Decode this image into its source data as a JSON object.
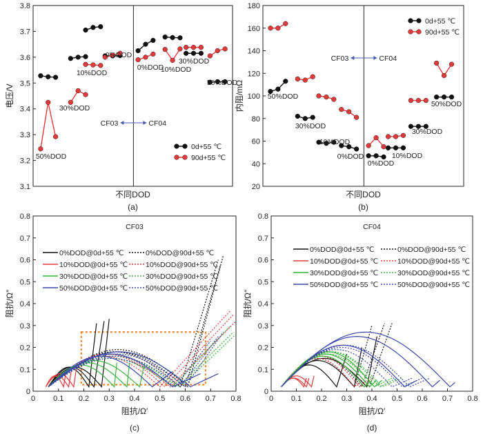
{
  "colors": {
    "black": "#111111",
    "red": "#e23a3a",
    "green": "#39b339",
    "blue": "#3a47a8",
    "orange": "#e8892c",
    "arrow": "#4b5bb0"
  },
  "chart_data": [
    {
      "type": "scatter",
      "id": "a",
      "caption": "(a)",
      "xlabel": "不同DOD",
      "ylabel": "电压/V",
      "ylim": [
        3.1,
        3.8
      ],
      "yticks": [
        "3.1",
        "3.2",
        "3.3",
        "3.4",
        "3.5",
        "3.6",
        "3.7",
        "3.8"
      ],
      "divider_label_left": "CF03",
      "divider_label_right": "CF04",
      "legend": [
        "0d+55 ℃",
        "90d+55 ℃"
      ],
      "groups": [
        {
          "label": "50%DOD",
          "x": [
            0.5,
            1.0,
            1.5
          ],
          "series0": [
            3.528,
            3.524,
            3.522
          ],
          "series1": [
            3.245,
            3.425,
            3.292
          ]
        },
        {
          "label": "30%DOD",
          "x": [
            2.5,
            3.0,
            3.5
          ],
          "series0": [
            3.595,
            3.6,
            3.602
          ],
          "series1": [
            3.425,
            3.47,
            3.455
          ]
        },
        {
          "label": "10%DOD",
          "x": [
            3.5,
            4.0,
            4.5
          ],
          "series0": [
            3.705,
            3.715,
            3.718
          ],
          "series1": [
            3.572,
            3.57,
            3.568
          ]
        },
        {
          "label": "0%DOD",
          "x": [
            4.8,
            5.3,
            5.8
          ],
          "series0": [
            3.605,
            3.605,
            3.606
          ],
          "series1": [
            3.6,
            3.608,
            3.615
          ]
        },
        {
          "label": "0%DOD",
          "x": [
            7.0,
            7.5,
            8.0
          ],
          "series0": [
            3.625,
            3.65,
            3.665
          ],
          "series1": [
            3.59,
            3.6,
            3.612
          ]
        },
        {
          "label": "10%DOD",
          "x": [
            8.8,
            9.3,
            9.8
          ],
          "series0": [
            3.678,
            3.676,
            3.675
          ],
          "series1": [
            3.63,
            3.588,
            3.632
          ]
        },
        {
          "label": "30%DOD",
          "x": [
            10.2,
            10.7,
            11.2
          ],
          "series0": [
            3.615,
            3.615,
            3.615
          ],
          "series1": [
            3.638,
            3.638,
            3.638
          ]
        },
        {
          "label": "50%DOD",
          "x": [
            11.8,
            12.3,
            12.8
          ],
          "series0": [
            3.503,
            3.505,
            3.505
          ],
          "series1": [
            3.605,
            3.625,
            3.632
          ]
        }
      ]
    },
    {
      "type": "scatter",
      "id": "b",
      "caption": "(b)",
      "xlabel": "不同DOD",
      "ylabel": "内阻/mΩ",
      "ylim": [
        20,
        180
      ],
      "yticks": [
        "20",
        "40",
        "60",
        "80",
        "100",
        "120",
        "140",
        "160",
        "180"
      ],
      "divider_label_left": "CF03",
      "divider_label_right": "CF04",
      "legend": [
        "0d+55 ℃",
        "90d+55 ℃"
      ],
      "groups": [
        {
          "label": "50%DOD",
          "x": [
            0.5,
            1.0,
            1.5
          ],
          "series0": [
            104,
            106,
            113
          ],
          "series1": [
            160,
            160,
            164
          ]
        },
        {
          "label": "30%DOD",
          "x": [
            2.3,
            2.8,
            3.3
          ],
          "series0": [
            82,
            80,
            81
          ],
          "series1": [
            115,
            114,
            117
          ]
        },
        {
          "label": "10%DOD",
          "x": [
            3.7,
            4.2,
            4.7
          ],
          "series0": [
            59,
            58,
            59
          ],
          "series1": [
            100,
            99,
            97
          ]
        },
        {
          "label": "0%DOD",
          "x": [
            5.2,
            5.7,
            6.2
          ],
          "series0": [
            56,
            55,
            53
          ],
          "series1": [
            88,
            86,
            81
          ]
        },
        {
          "label": "0%DOD",
          "x": [
            7.0,
            7.5,
            8.0
          ],
          "series0": [
            47,
            47,
            46
          ],
          "series1": [
            56,
            63,
            55
          ]
        },
        {
          "label": "10%DOD",
          "x": [
            8.3,
            8.8,
            9.3
          ],
          "series0": [
            54,
            54,
            54
          ],
          "series1": [
            64,
            64,
            65
          ]
        },
        {
          "label": "30%DOD",
          "x": [
            9.8,
            10.3,
            10.8
          ],
          "series0": [
            73,
            73,
            73
          ],
          "series1": [
            96,
            96,
            96
          ]
        },
        {
          "label": "50%DOD",
          "x": [
            11.5,
            12.0,
            12.5
          ],
          "series0": [
            99,
            99,
            99
          ],
          "series1": [
            129,
            118,
            128
          ]
        }
      ]
    },
    {
      "type": "line",
      "id": "c",
      "caption": "(c)",
      "title": "CF03",
      "xlabel": "阻抗/Ω′",
      "ylabel": "阻抗/Ω″",
      "xlim": [
        0,
        0.8
      ],
      "ylim": [
        0,
        0.8
      ],
      "xticks": [
        "0",
        "0.1",
        "0.2",
        "0.3",
        "0.4",
        "0.5",
        "0.6",
        "0.7",
        "0.8"
      ],
      "yticks": [
        "0",
        "0.1",
        "0.2",
        "0.3",
        "0.4",
        "0.5",
        "0.6",
        "0.7",
        "0.8"
      ],
      "highlight_box": [
        0.19,
        0.68,
        0.03,
        0.27
      ],
      "series": [
        {
          "name": "0%DOD@0d+55 ℃",
          "color": "black",
          "dash": false,
          "curves": [
            {
              "start": 0.06,
              "end": 0.22,
              "peak": 0.09,
              "tailx": 0.25,
              "taily": 0.31
            },
            {
              "start": 0.06,
              "end": 0.24,
              "peak": 0.09,
              "tailx": 0.28,
              "taily": 0.32
            },
            {
              "start": 0.06,
              "end": 0.27,
              "peak": 0.09,
              "tailx": 0.3,
              "taily": 0.33
            }
          ]
        },
        {
          "name": "0%DOD@90d+55 ℃",
          "color": "black",
          "dash": true,
          "curves": [
            {
              "start": 0.06,
              "end": 0.58,
              "peak": 0.16,
              "tailx": 0.73,
              "taily": 0.6
            },
            {
              "start": 0.06,
              "end": 0.6,
              "peak": 0.16,
              "tailx": 0.74,
              "taily": 0.58
            },
            {
              "start": 0.06,
              "end": 0.61,
              "peak": 0.17,
              "tailx": 0.75,
              "taily": 0.62
            }
          ]
        },
        {
          "name": "10%DOD@0d+55 ℃",
          "color": "red",
          "dash": false,
          "curves": [
            {
              "start": 0.05,
              "end": 0.12,
              "peak": 0.05,
              "tailx": 0.13,
              "taily": 0.09
            },
            {
              "start": 0.05,
              "end": 0.14,
              "peak": 0.05,
              "tailx": 0.15,
              "taily": 0.09
            },
            {
              "start": 0.05,
              "end": 0.16,
              "peak": 0.06,
              "tailx": 0.17,
              "taily": 0.1
            }
          ]
        },
        {
          "name": "10%DOD@90d+55 ℃",
          "color": "red",
          "dash": true,
          "curves": [
            {
              "start": 0.06,
              "end": 0.5,
              "peak": 0.14,
              "tailx": 0.78,
              "taily": 0.37
            },
            {
              "start": 0.06,
              "end": 0.52,
              "peak": 0.15,
              "tailx": 0.79,
              "taily": 0.35
            },
            {
              "start": 0.06,
              "end": 0.54,
              "peak": 0.15,
              "tailx": 0.8,
              "taily": 0.32
            }
          ]
        },
        {
          "name": "30%DOD@0d+55 ℃",
          "color": "green",
          "dash": false,
          "curves": [
            {
              "start": 0.06,
              "end": 0.32,
              "peak": 0.1,
              "tailx": 0.33,
              "taily": 0.13
            },
            {
              "start": 0.06,
              "end": 0.37,
              "peak": 0.11,
              "tailx": 0.38,
              "taily": 0.13
            },
            {
              "start": 0.06,
              "end": 0.42,
              "peak": 0.12,
              "tailx": 0.44,
              "taily": 0.13
            }
          ]
        },
        {
          "name": "30%DOD@90d+55 ℃",
          "color": "green",
          "dash": true,
          "curves": [
            {
              "start": 0.06,
              "end": 0.55,
              "peak": 0.13,
              "tailx": 0.78,
              "taily": 0.3
            },
            {
              "start": 0.06,
              "end": 0.57,
              "peak": 0.14,
              "tailx": 0.79,
              "taily": 0.27
            },
            {
              "start": 0.06,
              "end": 0.58,
              "peak": 0.14,
              "tailx": 0.8,
              "taily": 0.26
            }
          ]
        },
        {
          "name": "50%DOD@0d+55 ℃",
          "color": "blue",
          "dash": false,
          "curves": [
            {
              "start": 0.06,
              "end": 0.47,
              "peak": 0.14,
              "tailx": 0.55,
              "taily": 0.09
            },
            {
              "start": 0.06,
              "end": 0.55,
              "peak": 0.15,
              "tailx": 0.66,
              "taily": 0.08
            },
            {
              "start": 0.06,
              "end": 0.62,
              "peak": 0.16,
              "tailx": 0.73,
              "taily": 0.08
            }
          ]
        },
        {
          "name": "50%DOD@90d+55 ℃",
          "color": "blue",
          "dash": true,
          "curves": [
            {
              "start": 0.06,
              "end": 0.56,
              "peak": 0.13,
              "tailx": 0.7,
              "taily": 0.23
            },
            {
              "start": 0.06,
              "end": 0.58,
              "peak": 0.14,
              "tailx": 0.73,
              "taily": 0.25
            },
            {
              "start": 0.06,
              "end": 0.6,
              "peak": 0.15,
              "tailx": 0.75,
              "taily": 0.27
            }
          ]
        }
      ]
    },
    {
      "type": "line",
      "id": "d",
      "caption": "(d)",
      "title": "CF04",
      "xlabel": "阻抗/Ω′",
      "ylabel": "阻抗/Ω″",
      "xlim": [
        0,
        0.8
      ],
      "ylim": [
        0,
        0.8
      ],
      "xticks": [
        "0",
        "0.1",
        "0.2",
        "0.3",
        "0.4",
        "0.5",
        "0.6",
        "0.7",
        "0.8"
      ],
      "yticks": [
        "0",
        "0.1",
        "0.2",
        "0.3",
        "0.4",
        "0.5",
        "0.6",
        "0.7",
        "0.8"
      ],
      "series": [
        {
          "name": "0%DOD@0d+55 ℃",
          "color": "black",
          "dash": false,
          "curves": [
            {
              "start": 0.04,
              "end": 0.26,
              "peak": 0.1,
              "tailx": 0.3,
              "taily": 0.17
            },
            {
              "start": 0.04,
              "end": 0.33,
              "peak": 0.12,
              "tailx": 0.36,
              "taily": 0.2
            },
            {
              "start": 0.04,
              "end": 0.38,
              "peak": 0.13,
              "tailx": 0.42,
              "taily": 0.25
            }
          ]
        },
        {
          "name": "0%DOD@90d+55 ℃",
          "color": "black",
          "dash": true,
          "curves": [
            {
              "start": 0.04,
              "end": 0.33,
              "peak": 0.13,
              "tailx": 0.4,
              "taily": 0.3
            },
            {
              "start": 0.04,
              "end": 0.36,
              "peak": 0.14,
              "tailx": 0.45,
              "taily": 0.31
            },
            {
              "start": 0.04,
              "end": 0.39,
              "peak": 0.15,
              "tailx": 0.48,
              "taily": 0.31
            }
          ]
        },
        {
          "name": "10%DOD@0d+55 ℃",
          "color": "red",
          "dash": false,
          "curves": [
            {
              "start": 0.04,
              "end": 0.13,
              "peak": 0.04,
              "tailx": 0.14,
              "taily": 0.06
            },
            {
              "start": 0.04,
              "end": 0.14,
              "peak": 0.04,
              "tailx": 0.15,
              "taily": 0.06
            },
            {
              "start": 0.04,
              "end": 0.16,
              "peak": 0.05,
              "tailx": 0.17,
              "taily": 0.07
            }
          ]
        },
        {
          "name": "10%DOD@90d+55 ℃",
          "color": "red",
          "dash": true,
          "curves": [
            {
              "start": 0.04,
              "end": 0.33,
              "peak": 0.13,
              "tailx": 0.36,
              "taily": 0.05
            },
            {
              "start": 0.04,
              "end": 0.35,
              "peak": 0.14,
              "tailx": 0.38,
              "taily": 0.05
            },
            {
              "start": 0.04,
              "end": 0.37,
              "peak": 0.14,
              "tailx": 0.4,
              "taily": 0.06
            }
          ]
        },
        {
          "name": "30%DOD@0d+55 ℃",
          "color": "green",
          "dash": false,
          "curves": [
            {
              "start": 0.04,
              "end": 0.37,
              "peak": 0.14,
              "tailx": 0.4,
              "taily": 0.05
            },
            {
              "start": 0.04,
              "end": 0.39,
              "peak": 0.15,
              "tailx": 0.42,
              "taily": 0.05
            },
            {
              "start": 0.04,
              "end": 0.41,
              "peak": 0.16,
              "tailx": 0.44,
              "taily": 0.05
            }
          ]
        },
        {
          "name": "30%DOD@90d+55 ℃",
          "color": "green",
          "dash": true,
          "curves": [
            {
              "start": 0.04,
              "end": 0.41,
              "peak": 0.15,
              "tailx": 0.48,
              "taily": 0.06
            },
            {
              "start": 0.04,
              "end": 0.43,
              "peak": 0.16,
              "tailx": 0.5,
              "taily": 0.06
            },
            {
              "start": 0.04,
              "end": 0.44,
              "peak": 0.16,
              "tailx": 0.52,
              "taily": 0.06
            }
          ]
        },
        {
          "name": "50%DOD@0d+55 ℃",
          "color": "blue",
          "dash": false,
          "curves": [
            {
              "start": 0.04,
              "end": 0.53,
              "peak": 0.19,
              "tailx": 0.58,
              "taily": 0.05
            },
            {
              "start": 0.04,
              "end": 0.64,
              "peak": 0.23,
              "tailx": 0.67,
              "taily": 0.05
            },
            {
              "start": 0.04,
              "end": 0.71,
              "peak": 0.25,
              "tailx": 0.73,
              "taily": 0.04
            }
          ]
        },
        {
          "name": "50%DOD@90d+55 ℃",
          "color": "blue",
          "dash": true,
          "curves": [
            {
              "start": 0.04,
              "end": 0.48,
              "peak": 0.17,
              "tailx": 0.56,
              "taily": 0.06
            },
            {
              "start": 0.04,
              "end": 0.52,
              "peak": 0.18,
              "tailx": 0.6,
              "taily": 0.06
            },
            {
              "start": 0.04,
              "end": 0.55,
              "peak": 0.19,
              "tailx": 0.63,
              "taily": 0.06
            }
          ]
        }
      ]
    }
  ]
}
